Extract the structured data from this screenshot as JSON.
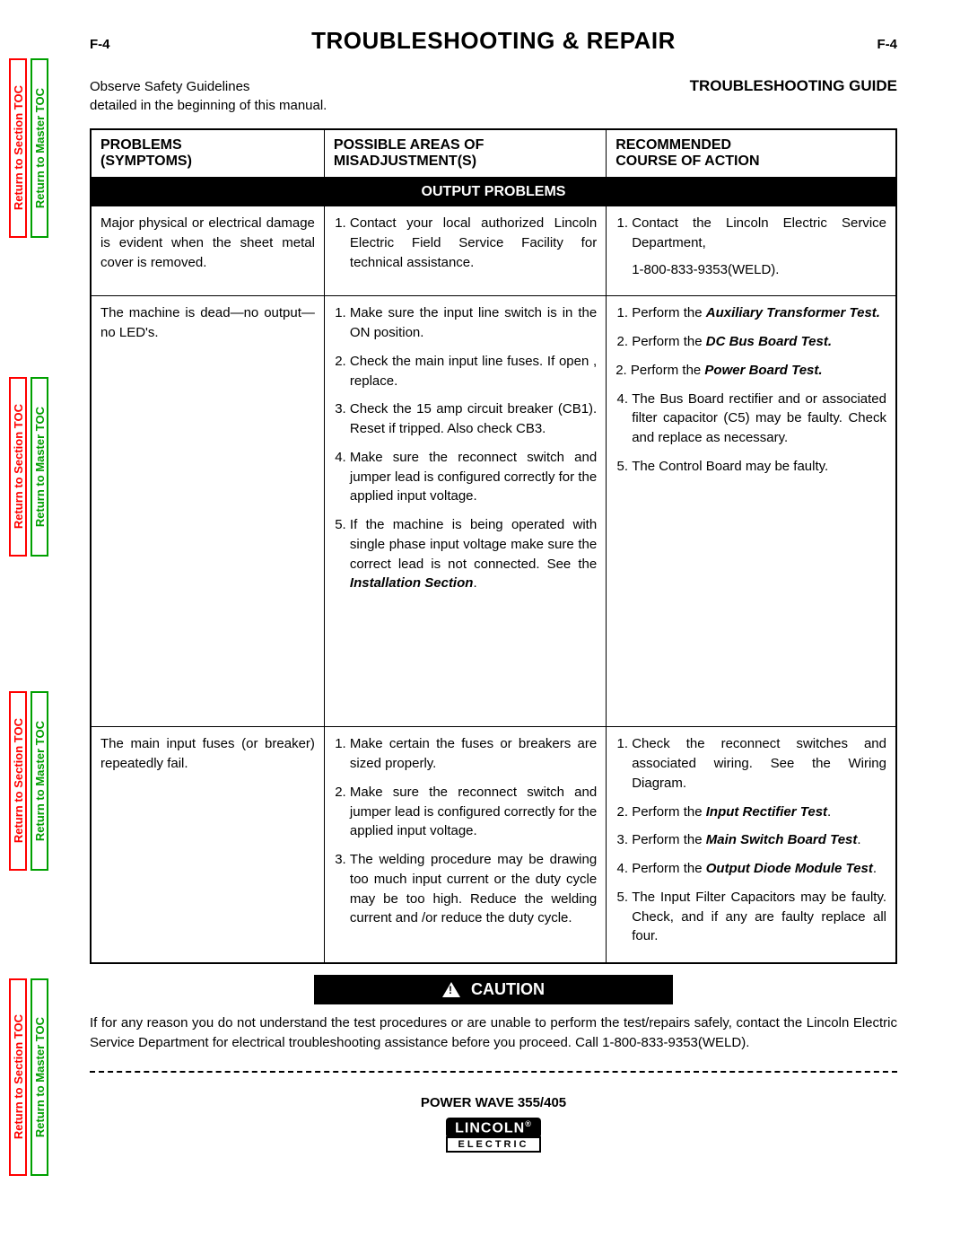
{
  "page_number": "F-4",
  "main_title": "TROUBLESHOOTING & REPAIR",
  "safety_note_line1": "Observe Safety Guidelines",
  "safety_note_line2": "detailed in the beginning of this manual.",
  "guide_label": "TROUBLESHOOTING GUIDE",
  "side_tabs": {
    "section": "Return to Section TOC",
    "master": "Return to Master TOC"
  },
  "columns": {
    "c1a": "PROBLEMS",
    "c1b": "(SYMPTOMS)",
    "c2a": "POSSIBLE AREAS OF",
    "c2b": "MISADJUSTMENT(S)",
    "c3a": "RECOMMENDED",
    "c3b": "COURSE OF ACTION"
  },
  "band": "OUTPUT PROBLEMS",
  "rows": [
    {
      "problem": "Major physical or electrical damage is evident when the sheet metal cover is removed.",
      "areas": [
        {
          "t": "Contact your local authorized Lincoln Electric Field Service Facility for technical assistance."
        }
      ],
      "actions": [
        {
          "t": "Contact the Lincoln Electric Service Department,",
          "after": "1-800-833-9353(WELD)."
        }
      ]
    },
    {
      "problem": "The machine is dead—no output—no LED's.",
      "areas": [
        {
          "t": "Make sure the input line switch is in the ON position."
        },
        {
          "t": "Check the main input line fuses. If open , replace."
        },
        {
          "t": "Check the 15 amp circuit breaker (CB1). Reset if tripped. Also check CB3."
        },
        {
          "t": "Make sure the reconnect switch and jumper lead is configured correctly for the applied input voltage."
        },
        {
          "t": "If the machine is being operated with single phase input voltage make sure the correct lead is not connected. See the ",
          "bi": "Installation Section",
          "post": "."
        }
      ],
      "actions": [
        {
          "t": "Perform the ",
          "bi": "Auxiliary Transformer Test."
        },
        {
          "t": "Perform the ",
          "bi": "DC Bus Board Test."
        },
        {
          "num": "2.",
          "t": "Perform the ",
          "bi": "Power Board Test."
        },
        {
          "t": "The Bus Board rectifier and or associated filter capacitor (C5) may be faulty. Check and replace as necessary."
        },
        {
          "t": "The Control Board may be faulty."
        }
      ],
      "tall": true
    },
    {
      "problem": "The main input fuses (or breaker) repeatedly fail.",
      "areas": [
        {
          "t": "Make certain the fuses or breakers are sized properly."
        },
        {
          "t": "Make sure the reconnect switch and jumper lead is configured correctly for the applied input voltage."
        },
        {
          "t": "The welding procedure may be drawing too much input current or the duty cycle may be too high. Reduce the welding current and /or reduce the duty cycle."
        }
      ],
      "actions": [
        {
          "t": "Check the reconnect switches and associated wiring. See the Wiring Diagram."
        },
        {
          "t": "Perform the ",
          "bi": "Input Rectifier Test",
          "post": "."
        },
        {
          "t": "Perform the ",
          "bi": "Main Switch Board Test",
          "post": "."
        },
        {
          "t": "Perform the ",
          "bi": "Output Diode Module Test",
          "post": "."
        },
        {
          "t": "The Input Filter Capacitors may be faulty. Check, and if any are faulty replace all four."
        }
      ]
    }
  ],
  "caution_label": "CAUTION",
  "caution_text": "If for any reason you do not understand the test procedures or are unable to perform the test/repairs safely, contact the Lincoln Electric Service Department for electrical troubleshooting assistance before you proceed. Call 1-800-833-9353(WELD).",
  "model": "POWER WAVE 355/405",
  "logo_top": "LINCOLN",
  "logo_reg": "®",
  "logo_bot": "ELECTRIC",
  "tab_layout": {
    "positions": [
      65,
      420,
      770,
      1090
    ],
    "height_short": 200,
    "height_long": 220
  },
  "colors": {
    "red": "#ff0000",
    "green": "#00a000",
    "black": "#000000"
  }
}
